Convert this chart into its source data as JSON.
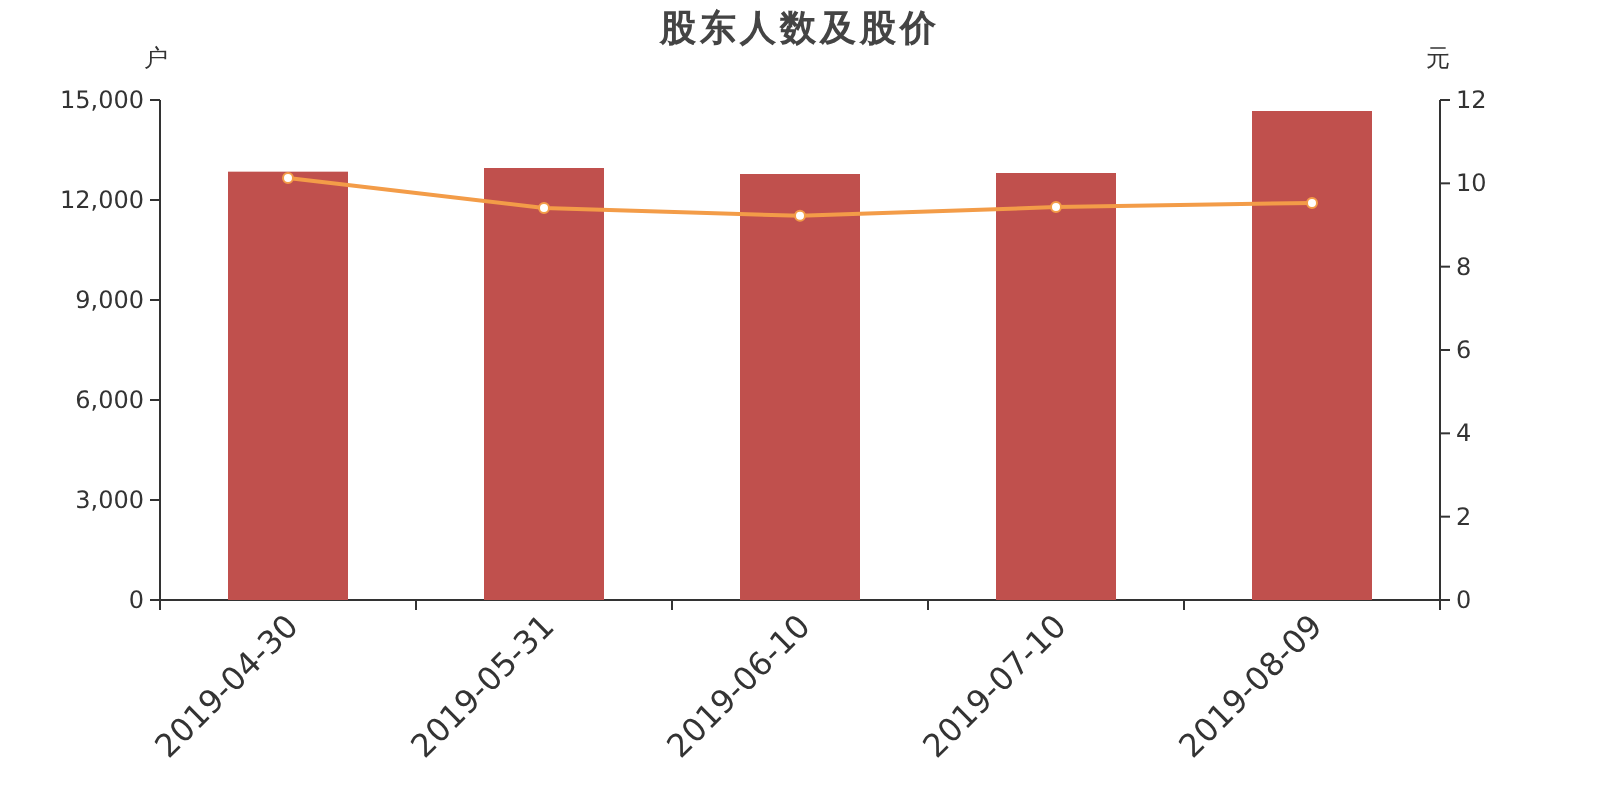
{
  "chart_data": {
    "type": "bar",
    "title": "股东人数及股价",
    "ylabel": "户",
    "y2label": "元",
    "categories": [
      "2019-04-30",
      "2019-05-31",
      "2019-06-10",
      "2019-07-10",
      "2019-08-09"
    ],
    "series": [
      {
        "color": "#c0504d",
        "values": [
          12850,
          12960,
          12780,
          12810,
          14670
        ]
      },
      {
        "type": "line",
        "axis": "y2",
        "color": "#f39c48",
        "marker": "circle",
        "values": [
          10.13,
          9.41,
          9.22,
          9.43,
          9.53
        ]
      }
    ],
    "ylim": [
      0,
      15000
    ],
    "yticks": [
      0,
      {
        "value": 3000,
        "label": "3,000"
      },
      {
        "value": 6000,
        "label": "6,000"
      },
      {
        "value": 9000,
        "label": "9,000"
      },
      {
        "value": 12000,
        "label": "12,000"
      },
      {
        "value": 15000,
        "label": "15,000"
      }
    ],
    "y2lim": [
      0,
      12
    ],
    "y2ticks": [
      0,
      2,
      4,
      6,
      8,
      10,
      12
    ],
    "grid": false
  }
}
